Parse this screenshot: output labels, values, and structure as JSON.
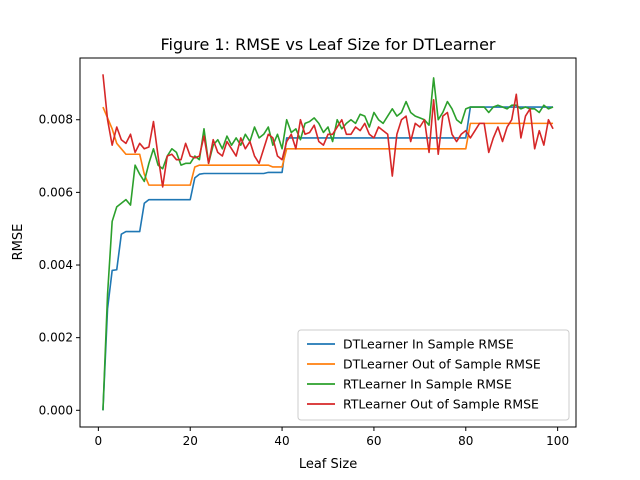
{
  "chart_data": {
    "type": "line",
    "title": "Figure 1: RMSE vs Leaf Size for DTLearner",
    "xlabel": "Leaf Size",
    "ylabel": "RMSE",
    "xlim": [
      -4,
      104
    ],
    "ylim": [
      -0.00046,
      0.0097
    ],
    "xticks": [
      0,
      20,
      40,
      60,
      80,
      100
    ],
    "yticks": [
      0.0,
      0.002,
      0.004,
      0.006,
      0.008
    ],
    "ytick_labels": [
      "0.000",
      "0.002",
      "0.004",
      "0.006",
      "0.008"
    ],
    "grid": false,
    "legend_position": "lower-right",
    "x": [
      1,
      2,
      3,
      4,
      5,
      6,
      7,
      8,
      9,
      10,
      11,
      12,
      13,
      14,
      15,
      16,
      17,
      18,
      19,
      20,
      21,
      22,
      23,
      24,
      25,
      26,
      27,
      28,
      29,
      30,
      31,
      32,
      33,
      34,
      35,
      36,
      37,
      38,
      39,
      40,
      41,
      42,
      43,
      44,
      45,
      46,
      47,
      48,
      49,
      50,
      51,
      52,
      53,
      54,
      55,
      56,
      57,
      58,
      59,
      60,
      61,
      62,
      63,
      64,
      65,
      66,
      67,
      68,
      69,
      70,
      71,
      72,
      73,
      74,
      75,
      76,
      77,
      78,
      79,
      80,
      81,
      82,
      83,
      84,
      85,
      86,
      87,
      88,
      89,
      90,
      91,
      92,
      93,
      94,
      95,
      96,
      97,
      98,
      99
    ],
    "series": [
      {
        "name": "DTLearner In Sample RMSE",
        "color": "#1f77b4",
        "values": [
          0.0,
          0.0028,
          0.00385,
          0.00387,
          0.00485,
          0.00492,
          0.00492,
          0.00492,
          0.00492,
          0.0057,
          0.0058,
          0.0058,
          0.0058,
          0.0058,
          0.0058,
          0.0058,
          0.0058,
          0.0058,
          0.0058,
          0.0058,
          0.0064,
          0.0065,
          0.00652,
          0.00652,
          0.00652,
          0.00652,
          0.00652,
          0.00652,
          0.00652,
          0.00652,
          0.00652,
          0.00652,
          0.00652,
          0.00652,
          0.00652,
          0.00652,
          0.00655,
          0.00655,
          0.00655,
          0.00655,
          0.0075,
          0.0075,
          0.0075,
          0.0075,
          0.0075,
          0.0075,
          0.0075,
          0.0075,
          0.0075,
          0.0075,
          0.0075,
          0.0075,
          0.0075,
          0.0075,
          0.0075,
          0.0075,
          0.0075,
          0.0075,
          0.0075,
          0.0075,
          0.0075,
          0.0075,
          0.0075,
          0.0075,
          0.0075,
          0.0075,
          0.0075,
          0.0075,
          0.0075,
          0.0075,
          0.0075,
          0.0075,
          0.0075,
          0.0075,
          0.0075,
          0.0075,
          0.0075,
          0.0075,
          0.0075,
          0.0075,
          0.00835,
          0.00835,
          0.00835,
          0.00835,
          0.00835,
          0.00835,
          0.00835,
          0.00835,
          0.00835,
          0.00835,
          0.00835,
          0.00835,
          0.00835,
          0.00835,
          0.00835,
          0.00835,
          0.00835,
          0.00835,
          0.00835
        ]
      },
      {
        "name": "DTLearner Out of Sample RMSE",
        "color": "#ff7f0e",
        "values": [
          0.00835,
          0.00805,
          0.00775,
          0.00735,
          0.0072,
          0.00705,
          0.00705,
          0.00705,
          0.00705,
          0.0065,
          0.0062,
          0.0062,
          0.0062,
          0.0062,
          0.0062,
          0.0062,
          0.0062,
          0.0062,
          0.0062,
          0.0062,
          0.0067,
          0.00675,
          0.00675,
          0.00675,
          0.00675,
          0.00675,
          0.00675,
          0.00675,
          0.00675,
          0.00675,
          0.00675,
          0.00675,
          0.00675,
          0.00675,
          0.00675,
          0.00675,
          0.00675,
          0.0067,
          0.0067,
          0.0067,
          0.0072,
          0.0072,
          0.0072,
          0.0072,
          0.0072,
          0.0072,
          0.0072,
          0.0072,
          0.0072,
          0.0072,
          0.0072,
          0.0072,
          0.0072,
          0.0072,
          0.0072,
          0.0072,
          0.0072,
          0.0072,
          0.0072,
          0.0072,
          0.0072,
          0.0072,
          0.0072,
          0.0072,
          0.0072,
          0.0072,
          0.0072,
          0.0072,
          0.0072,
          0.0072,
          0.0072,
          0.0072,
          0.0072,
          0.0072,
          0.0072,
          0.0072,
          0.0072,
          0.0072,
          0.0072,
          0.0072,
          0.0079,
          0.0079,
          0.0079,
          0.0079,
          0.0079,
          0.0079,
          0.0079,
          0.0079,
          0.0079,
          0.0079,
          0.0079,
          0.0079,
          0.0079,
          0.0079,
          0.0079,
          0.0079,
          0.0079,
          0.0079,
          0.0079
        ]
      },
      {
        "name": "RTLearner In Sample RMSE",
        "color": "#2ca02c",
        "values": [
          0.0,
          0.0032,
          0.0052,
          0.0056,
          0.0057,
          0.0058,
          0.00565,
          0.00675,
          0.0065,
          0.0063,
          0.0068,
          0.0072,
          0.00675,
          0.00665,
          0.007,
          0.0072,
          0.0071,
          0.00675,
          0.0068,
          0.0068,
          0.007,
          0.0069,
          0.00775,
          0.0068,
          0.0073,
          0.00745,
          0.0072,
          0.00755,
          0.0073,
          0.0075,
          0.0073,
          0.0076,
          0.0074,
          0.0078,
          0.0075,
          0.0076,
          0.0078,
          0.0073,
          0.0076,
          0.0072,
          0.008,
          0.00765,
          0.00775,
          0.00745,
          0.0079,
          0.00795,
          0.00805,
          0.0079,
          0.00765,
          0.0078,
          0.0074,
          0.008,
          0.00775,
          0.0079,
          0.008,
          0.0079,
          0.00815,
          0.0081,
          0.0078,
          0.0082,
          0.008,
          0.0079,
          0.0081,
          0.0083,
          0.0081,
          0.0082,
          0.0085,
          0.0082,
          0.0081,
          0.00805,
          0.008,
          0.00785,
          0.00915,
          0.008,
          0.0082,
          0.0085,
          0.0083,
          0.008,
          0.0079,
          0.0083,
          0.00835,
          0.00835,
          0.00835,
          0.00835,
          0.0082,
          0.00835,
          0.0084,
          0.00835,
          0.0083,
          0.0084,
          0.0084,
          0.0083,
          0.00835,
          0.0083,
          0.0083,
          0.0082,
          0.0084,
          0.0083,
          0.00835
        ]
      },
      {
        "name": "RTLearner Out of Sample RMSE",
        "color": "#d62728",
        "values": [
          0.00925,
          0.008,
          0.0073,
          0.0078,
          0.00745,
          0.00735,
          0.0076,
          0.0071,
          0.00735,
          0.0072,
          0.00725,
          0.00795,
          0.007,
          0.00615,
          0.007,
          0.00705,
          0.0069,
          0.0069,
          0.00735,
          0.007,
          0.00695,
          0.007,
          0.00755,
          0.0068,
          0.00745,
          0.0071,
          0.007,
          0.0074,
          0.0072,
          0.007,
          0.0075,
          0.0072,
          0.0074,
          0.007,
          0.0068,
          0.0072,
          0.0076,
          0.0075,
          0.007,
          0.0069,
          0.0074,
          0.0076,
          0.0072,
          0.008,
          0.0076,
          0.00765,
          0.00785,
          0.0074,
          0.0073,
          0.0076,
          0.0076,
          0.0078,
          0.008,
          0.0076,
          0.0076,
          0.0078,
          0.0077,
          0.0079,
          0.0076,
          0.0075,
          0.0078,
          0.0077,
          0.0076,
          0.00645,
          0.0076,
          0.008,
          0.0081,
          0.0074,
          0.0079,
          0.0078,
          0.008,
          0.0071,
          0.00855,
          0.00705,
          0.0081,
          0.0082,
          0.0076,
          0.0074,
          0.0076,
          0.0077,
          0.0075,
          0.0077,
          0.0079,
          0.0079,
          0.0071,
          0.0075,
          0.0078,
          0.0074,
          0.0078,
          0.008,
          0.0087,
          0.0075,
          0.0081,
          0.0083,
          0.0072,
          0.0077,
          0.0073,
          0.008,
          0.00775
        ]
      }
    ]
  }
}
